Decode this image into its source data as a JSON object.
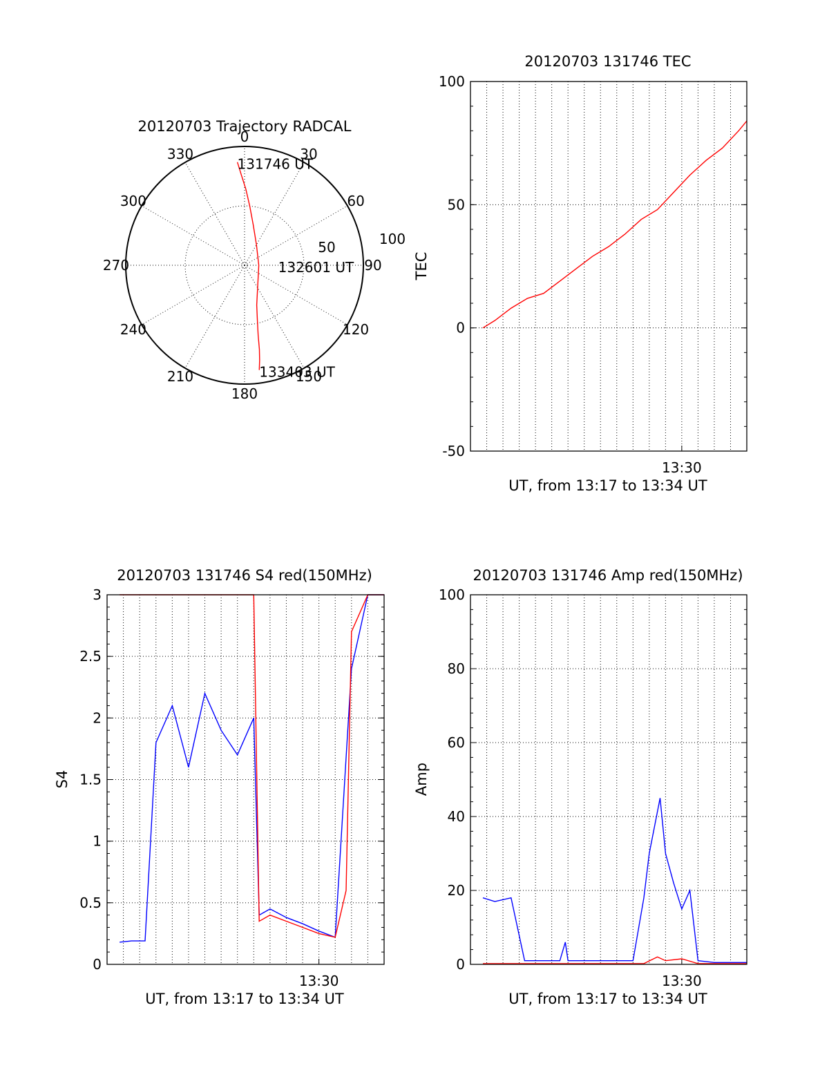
{
  "chart_data": [
    {
      "type": "polar",
      "title": "20120703 Trajectory RADCAL",
      "angle_labels": [
        "0",
        "30",
        "60",
        "90",
        "120",
        "150",
        "180",
        "210",
        "240",
        "270",
        "300",
        "330"
      ],
      "radius_labels": [
        "50",
        "100"
      ],
      "rlim": [
        0,
        100
      ],
      "grid": true,
      "series": [
        {
          "color": "#ff0000",
          "points_az_el": [
            {
              "az": 356,
              "el": 87
            },
            {
              "az": 358,
              "el": 76
            },
            {
              "az": 1,
              "el": 64
            },
            {
              "az": 5,
              "el": 50
            },
            {
              "az": 12,
              "el": 35
            },
            {
              "az": 30,
              "el": 20
            },
            {
              "az": 90,
              "el": 12
            },
            {
              "az": 150,
              "el": 22
            },
            {
              "az": 163,
              "el": 35
            },
            {
              "az": 167,
              "el": 48
            },
            {
              "az": 169,
              "el": 60
            },
            {
              "az": 170,
              "el": 72
            },
            {
              "az": 171,
              "el": 81
            },
            {
              "az": 172,
              "el": 89
            }
          ]
        }
      ],
      "annotations": [
        {
          "text": "131746 UT",
          "az": 356,
          "el": 87
        },
        {
          "text": "132601 UT",
          "az": 90,
          "el": 12
        },
        {
          "text": "133403 UT",
          "az": 172,
          "el": 89
        }
      ]
    },
    {
      "type": "line",
      "title": "20120703 131746 TEC",
      "ylabel": "TEC",
      "xlabel": "UT, from 13:17 to 13:34 UT",
      "xlim": [
        "13:17",
        "13:34"
      ],
      "ylim": [
        -50,
        100
      ],
      "y_ticks": [
        "-50",
        "0",
        "50",
        "100"
      ],
      "x_tick_labels": [
        {
          "time": "13:30",
          "label": "13:30"
        }
      ],
      "grid": true,
      "series": [
        {
          "color": "#ff0000",
          "x": [
            "13:17:46",
            "13:18:30",
            "13:19:30",
            "13:20:30",
            "13:21:30",
            "13:22:30",
            "13:23:30",
            "13:24:30",
            "13:25:30",
            "13:26:30",
            "13:27:30",
            "13:28:30",
            "13:29:30",
            "13:30:30",
            "13:31:30",
            "13:32:30",
            "13:33:30",
            "13:34:00"
          ],
          "y": [
            0,
            3,
            8,
            12,
            14,
            19,
            24,
            29,
            33,
            38,
            44,
            48,
            55,
            62,
            68,
            73,
            80,
            84
          ]
        }
      ]
    },
    {
      "type": "line",
      "title": "20120703 131746 S4 red(150MHz)",
      "ylabel": "S4",
      "xlabel": "UT, from 13:17 to 13:34 UT",
      "xlim": [
        "13:17",
        "13:34"
      ],
      "ylim": [
        0,
        3
      ],
      "y_ticks": [
        "0",
        "0.5",
        "1",
        "1.5",
        "2",
        "2.5",
        "3"
      ],
      "x_tick_labels": [
        {
          "time": "13:30",
          "label": "13:30"
        }
      ],
      "grid": true,
      "series": [
        {
          "color": "#0000ff",
          "x": [
            "13:17:46",
            "13:18:30",
            "13:19:20",
            "13:20:00",
            "13:21:00",
            "13:22:00",
            "13:23:00",
            "13:24:00",
            "13:25:00",
            "13:26:00",
            "13:26:20",
            "13:27:00",
            "13:28:00",
            "13:29:00",
            "13:30:00",
            "13:31:00",
            "13:32:00",
            "13:33:00",
            "13:34:00"
          ],
          "y": [
            0.18,
            0.19,
            0.19,
            1.8,
            2.1,
            1.6,
            2.2,
            1.9,
            1.7,
            2.0,
            0.4,
            0.45,
            0.38,
            0.33,
            0.27,
            0.22,
            2.4,
            3.0,
            3.0
          ]
        },
        {
          "color": "#ff0000",
          "x": [
            "13:17:46",
            "13:20:00",
            "13:23:00",
            "13:26:00",
            "13:26:20",
            "13:27:00",
            "13:28:00",
            "13:29:00",
            "13:30:00",
            "13:31:00",
            "13:31:40",
            "13:32:00",
            "13:33:00",
            "13:34:00"
          ],
          "y": [
            3.0,
            3.0,
            3.0,
            3.0,
            0.35,
            0.4,
            0.35,
            0.3,
            0.25,
            0.22,
            0.6,
            2.7,
            3.0,
            3.0
          ]
        }
      ]
    },
    {
      "type": "line",
      "title": "20120703 131746 Amp red(150MHz)",
      "ylabel": "Amp",
      "xlabel": "UT, from 13:17 to 13:34 UT",
      "xlim": [
        "13:17",
        "13:34"
      ],
      "ylim": [
        0,
        100
      ],
      "y_ticks": [
        "0",
        "20",
        "40",
        "60",
        "80",
        "100"
      ],
      "x_tick_labels": [
        {
          "time": "13:30",
          "label": "13:30"
        }
      ],
      "grid": true,
      "series": [
        {
          "color": "#0000ff",
          "x": [
            "13:17:46",
            "13:18:30",
            "13:19:30",
            "13:20:20",
            "13:21:30",
            "13:22:30",
            "13:22:50",
            "13:23:00",
            "13:25:00",
            "13:27:00",
            "13:27:40",
            "13:28:00",
            "13:28:40",
            "13:29:00",
            "13:29:30",
            "13:30:00",
            "13:30:30",
            "13:31:00",
            "13:32:00",
            "13:34:00"
          ],
          "y": [
            18,
            17,
            18,
            1,
            1,
            1,
            6,
            1,
            1,
            1,
            18,
            30,
            45,
            30,
            22,
            15,
            20,
            1,
            0.5,
            0.5
          ]
        },
        {
          "color": "#ff0000",
          "x": [
            "13:17:46",
            "13:20:20",
            "13:27:40",
            "13:28:30",
            "13:29:00",
            "13:30:00",
            "13:31:00",
            "13:34:00"
          ],
          "y": [
            0.2,
            0.2,
            0.2,
            2,
            1,
            1.5,
            0.2,
            0.2
          ]
        }
      ]
    }
  ]
}
